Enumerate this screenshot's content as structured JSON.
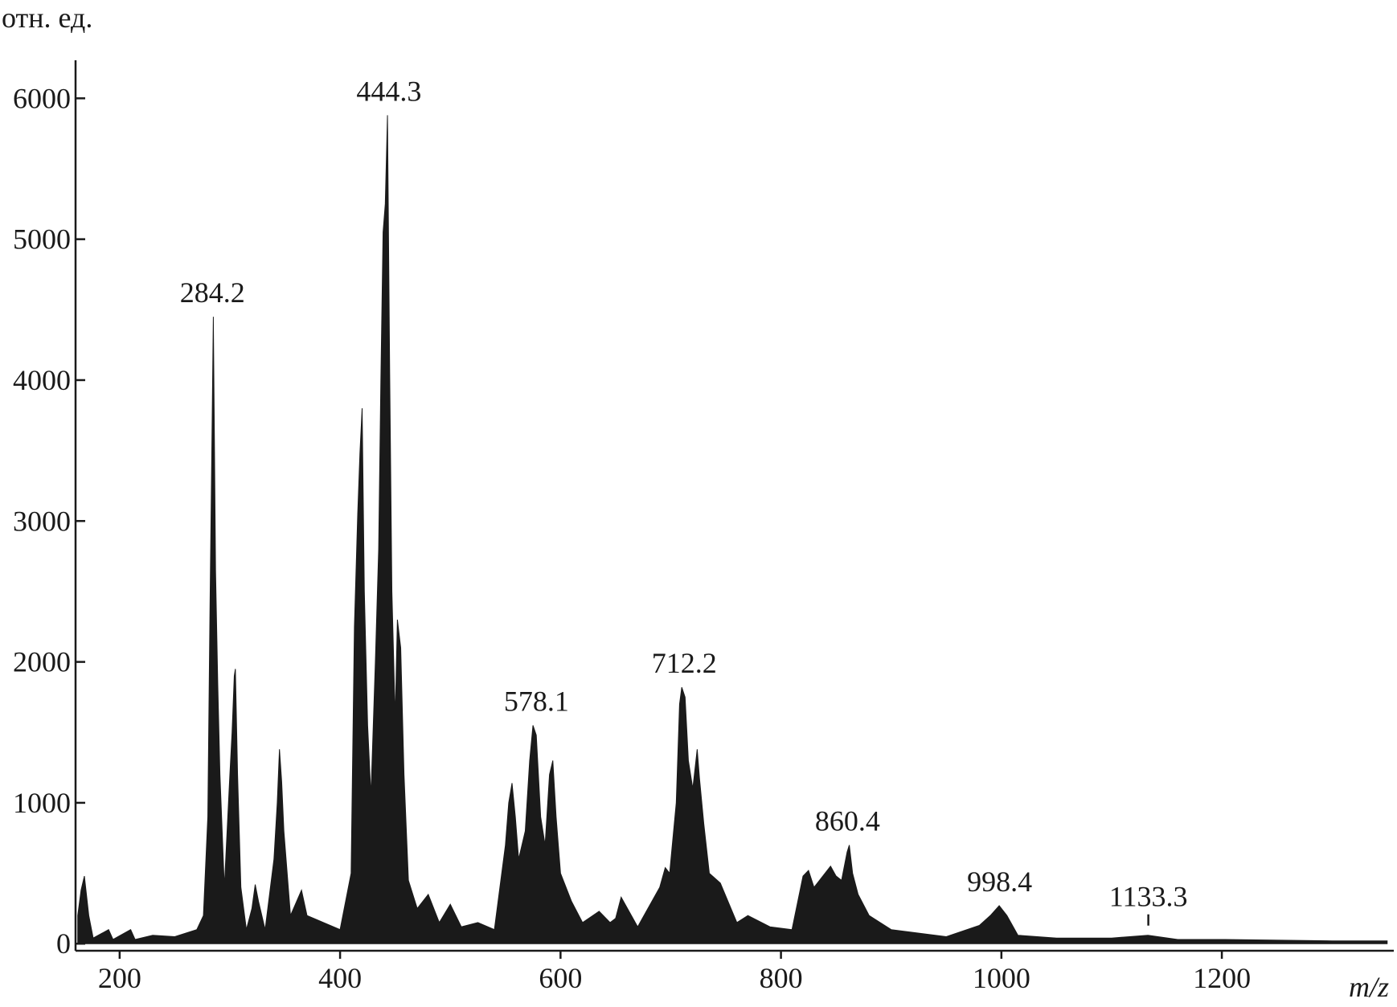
{
  "chart_data": {
    "type": "spectrum",
    "y_label": "отн. ед.",
    "x_label": "m/z",
    "color": "#1a1a1a",
    "xlim": [
      160,
      1356
    ],
    "ylim": [
      -50,
      6270
    ],
    "xticks": [
      200,
      400,
      600,
      800,
      1000,
      1200
    ],
    "yticks": [
      0,
      1000,
      2000,
      3000,
      4000,
      5000,
      6000
    ],
    "annotations": [
      "284.2",
      "444.3",
      "578.1",
      "712.2",
      "860.4",
      "998.4",
      "1133.3"
    ],
    "x": [
      162,
      165,
      168,
      172,
      176,
      190,
      194,
      210,
      214,
      230,
      250,
      270,
      276,
      280,
      282,
      284,
      285,
      287,
      289,
      291,
      295,
      300,
      302,
      304,
      305,
      307,
      310,
      315,
      320,
      323,
      326,
      332,
      340,
      343,
      345,
      347,
      349,
      355,
      365,
      370,
      385,
      400,
      410,
      413,
      416,
      418,
      420,
      422,
      425,
      428,
      432,
      435,
      437,
      439,
      441,
      443,
      445,
      447,
      450,
      452,
      455,
      458,
      462,
      470,
      480,
      490,
      500,
      510,
      525,
      540,
      550,
      553,
      556,
      559,
      562,
      568,
      572,
      575,
      578,
      582,
      586,
      590,
      593,
      596,
      600,
      610,
      620,
      635,
      645,
      650,
      655,
      670,
      690,
      695,
      699,
      705,
      708,
      710,
      713,
      716,
      720,
      724,
      726,
      730,
      735,
      745,
      760,
      770,
      790,
      810,
      820,
      825,
      830,
      840,
      845,
      850,
      855,
      860,
      862,
      865,
      870,
      880,
      900,
      920,
      950,
      980,
      990,
      998,
      1005,
      1015,
      1050,
      1100,
      1133,
      1160,
      1200,
      1300,
      1350
    ],
    "values": [
      200,
      380,
      480,
      200,
      40,
      100,
      30,
      100,
      30,
      60,
      50,
      100,
      200,
      900,
      2400,
      3750,
      4450,
      2650,
      1850,
      1200,
      400,
      1200,
      1500,
      1900,
      1950,
      1200,
      400,
      100,
      250,
      420,
      300,
      100,
      600,
      1000,
      1380,
      1150,
      800,
      200,
      380,
      200,
      150,
      100,
      500,
      2250,
      3050,
      3480,
      3800,
      2500,
      1550,
      1050,
      2000,
      2800,
      4000,
      5050,
      5250,
      5880,
      4050,
      2500,
      1600,
      2300,
      2100,
      1200,
      450,
      250,
      350,
      150,
      280,
      120,
      150,
      100,
      700,
      1000,
      1140,
      900,
      600,
      800,
      1300,
      1550,
      1480,
      900,
      700,
      1200,
      1300,
      900,
      500,
      300,
      150,
      230,
      150,
      180,
      330,
      120,
      400,
      540,
      500,
      1000,
      1700,
      1820,
      1750,
      1300,
      1100,
      1380,
      1180,
      850,
      500,
      430,
      150,
      200,
      120,
      100,
      480,
      520,
      400,
      500,
      550,
      480,
      450,
      650,
      700,
      500,
      350,
      200,
      100,
      80,
      50,
      130,
      200,
      270,
      200,
      60,
      40,
      40,
      60,
      30,
      30,
      20,
      20
    ]
  }
}
